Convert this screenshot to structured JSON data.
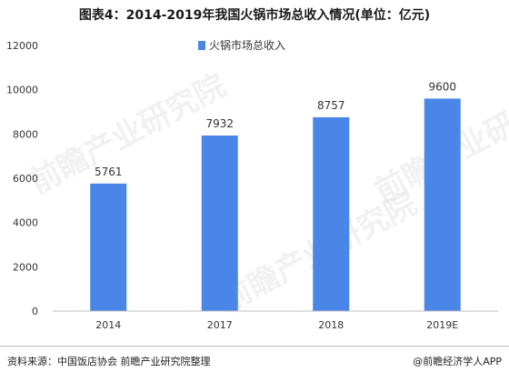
{
  "title": "图表4：2014-2019年我国火锅市场总收入情况(单位：亿元)",
  "footer": {
    "source": "资料来源：中国饭店协会 前瞻产业研究院整理",
    "brand": "@前瞻经济学人APP"
  },
  "watermark_text": "前瞻产业研究院",
  "chart_data": {
    "type": "bar",
    "categories": [
      "2014",
      "2017",
      "2018",
      "2019E"
    ],
    "series": [
      {
        "name": "火锅市场总收入",
        "values": [
          5761,
          7932,
          8757,
          9600
        ]
      }
    ],
    "ylim": [
      0,
      12000
    ],
    "yticks": [
      0,
      2000,
      4000,
      6000,
      8000,
      10000,
      12000
    ],
    "grid": false,
    "legend_position": "top-center",
    "bar_color": "#4A86E8",
    "data_labels": [
      "5761",
      "7932",
      "8757",
      "9600"
    ]
  }
}
